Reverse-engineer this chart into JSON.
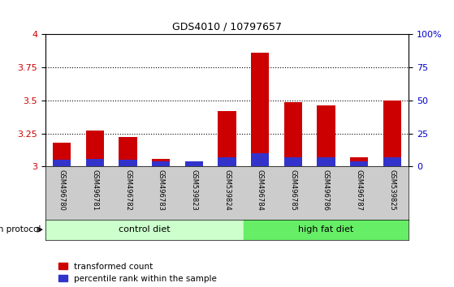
{
  "title": "GDS4010 / 10797657",
  "samples": [
    "GSM496780",
    "GSM496781",
    "GSM496782",
    "GSM496783",
    "GSM539823",
    "GSM539824",
    "GSM496784",
    "GSM496785",
    "GSM496786",
    "GSM496787",
    "GSM539825"
  ],
  "red_values": [
    3.18,
    3.27,
    3.22,
    3.06,
    3.03,
    3.42,
    3.86,
    3.49,
    3.46,
    3.07,
    3.5
  ],
  "blue_percentiles": [
    5,
    6,
    5,
    4,
    4,
    7,
    10,
    7,
    7,
    4,
    7
  ],
  "red_color": "#cc0000",
  "blue_color": "#3333cc",
  "bar_base": 3.0,
  "ylim_left": [
    3.0,
    4.0
  ],
  "ylim_right": [
    0,
    100
  ],
  "yticks_left": [
    3.0,
    3.25,
    3.5,
    3.75,
    4.0
  ],
  "ytick_labels_left": [
    "3",
    "3.25",
    "3.5",
    "3.75",
    "4"
  ],
  "yticks_right": [
    0,
    25,
    50,
    75,
    100
  ],
  "ytick_labels_right": [
    "0",
    "25",
    "50",
    "75",
    "100%"
  ],
  "grid_values": [
    3.25,
    3.5,
    3.75
  ],
  "control_diet_indices": [
    0,
    1,
    2,
    3,
    4,
    5
  ],
  "high_fat_diet_indices": [
    6,
    7,
    8,
    9,
    10
  ],
  "control_diet_label": "control diet",
  "high_fat_diet_label": "high fat diet",
  "growth_protocol_label": "growth protocol",
  "legend_red": "transformed count",
  "legend_blue": "percentile rank within the sample",
  "control_diet_color": "#ccffcc",
  "high_fat_diet_color": "#66ee66",
  "left_tick_color": "#cc0000",
  "right_tick_color": "#0000cc",
  "bar_width": 0.55,
  "sample_area_color": "#cccccc"
}
